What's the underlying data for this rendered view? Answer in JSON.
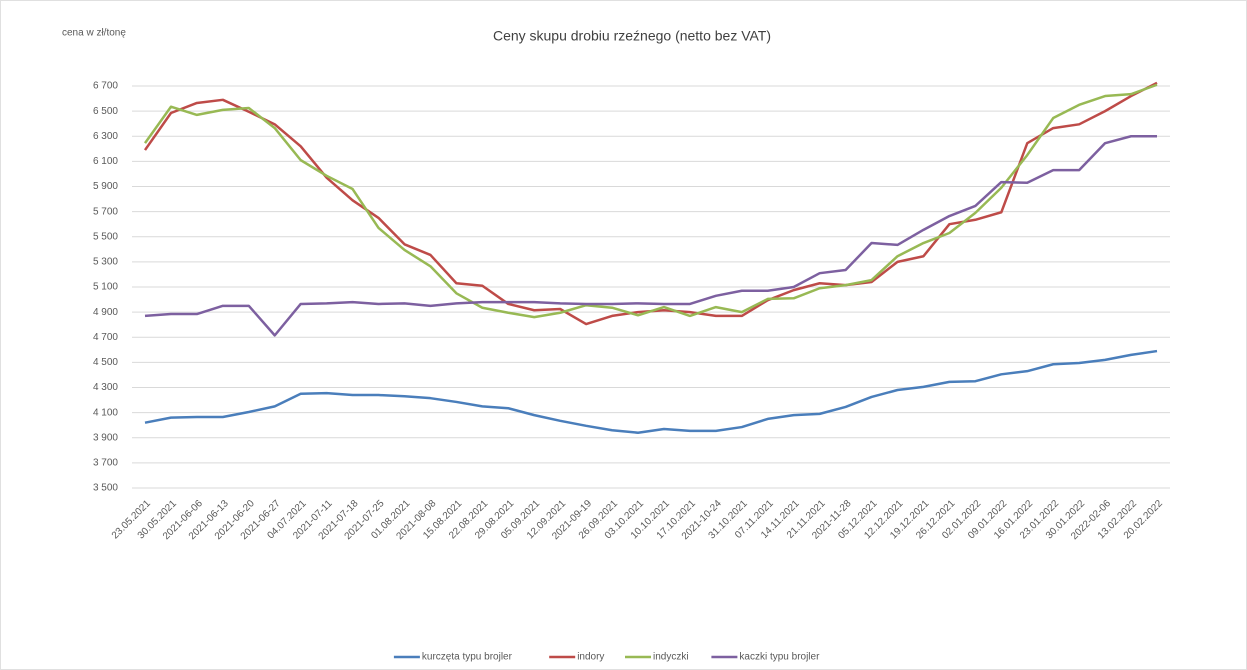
{
  "chart_data": {
    "type": "line",
    "title": "Ceny skupu drobiu rzeźnego (netto bez VAT)",
    "y_label": "cena w zł/tonę",
    "categories": [
      "23.05.2021",
      "30.05.2021",
      "2021-06-06",
      "2021-06-13",
      "2021-06-20",
      "2021-06-27",
      "04.07.2021",
      "2021-07-11",
      "2021-07-18",
      "2021-07-25",
      "01.08.2021",
      "2021-08-08",
      "15.08.2021",
      "22.08.2021",
      "29.08.2021",
      "05.09.2021",
      "12.09.2021",
      "2021-09-19",
      "26.09.2021",
      "03.10.2021",
      "10.10.2021",
      "17.10.2021",
      "2021-10-24",
      "31.10.2021",
      "07.11.2021",
      "14.11.2021",
      "21.11.2021",
      "2021-11-28",
      "05.12.2021",
      "12.12.2021",
      "19.12.2021",
      "26.12.2021",
      "02.01.2022",
      "09.01.2022",
      "16.01.2022",
      "23.01.2022",
      "30.01.2022",
      "2022-02-06",
      "13.02.2022",
      "20.02.2022"
    ],
    "series": [
      {
        "name": "kurczęta typu brojler",
        "color": "#4a7ebb",
        "values": [
          4020,
          4060,
          4065,
          4065,
          4105,
          4150,
          4250,
          4255,
          4240,
          4240,
          4230,
          4215,
          4185,
          4150,
          4135,
          4080,
          4035,
          3995,
          3960,
          3940,
          3970,
          3955,
          3955,
          3985,
          4050,
          4080,
          4090,
          4145,
          4225,
          4280,
          4305,
          4345,
          4350,
          4405,
          4430,
          4485,
          4495,
          4520,
          4560,
          4590
        ]
      },
      {
        "name": "indory",
        "color": "#be4b48",
        "values": [
          6190,
          6485,
          6565,
          6590,
          6495,
          6395,
          6220,
          5970,
          5790,
          5650,
          5440,
          5355,
          5130,
          5110,
          4965,
          4915,
          4925,
          4805,
          4870,
          4900,
          4915,
          4900,
          4870,
          4870,
          4995,
          5075,
          5130,
          5115,
          5140,
          5300,
          5345,
          5600,
          5635,
          5695,
          6245,
          6365,
          6395,
          6500,
          6620,
          6725
        ]
      },
      {
        "name": "indyczki",
        "color": "#98b954",
        "values": [
          6245,
          6535,
          6470,
          6510,
          6525,
          6365,
          6110,
          5985,
          5880,
          5570,
          5395,
          5265,
          5050,
          4935,
          4895,
          4860,
          4895,
          4955,
          4935,
          4875,
          4940,
          4870,
          4940,
          4900,
          5005,
          5010,
          5090,
          5115,
          5155,
          5345,
          5450,
          5530,
          5690,
          5890,
          6150,
          6445,
          6550,
          6620,
          6635,
          6710
        ]
      },
      {
        "name": "kaczki typu brojler",
        "color": "#7d60a0",
        "values": [
          4870,
          4885,
          4885,
          4950,
          4950,
          4715,
          4965,
          4970,
          4980,
          4965,
          4970,
          4950,
          4970,
          4980,
          4980,
          4980,
          4970,
          4965,
          4965,
          4970,
          4965,
          4965,
          5030,
          5070,
          5070,
          5100,
          5210,
          5235,
          5450,
          5435,
          5555,
          5665,
          5745,
          5935,
          5930,
          6030,
          6030,
          6245,
          6300,
          6300
        ]
      }
    ],
    "ylim": [
      3500,
      6700
    ],
    "yticks": [
      {
        "value": 3500,
        "label": "3 500"
      },
      {
        "value": 3700,
        "label": "3 700"
      },
      {
        "value": 3900,
        "label": "3 900"
      },
      {
        "value": 4100,
        "label": "4 100"
      },
      {
        "value": 4300,
        "label": "4 300"
      },
      {
        "value": 4500,
        "label": "4 500"
      },
      {
        "value": 4700,
        "label": "4 700"
      },
      {
        "value": 4900,
        "label": "4 900"
      },
      {
        "value": 5100,
        "label": "5 100"
      },
      {
        "value": 5300,
        "label": "5 300"
      },
      {
        "value": 5500,
        "label": "5 500"
      },
      {
        "value": 5700,
        "label": "5 700"
      },
      {
        "value": 5900,
        "label": "5 900"
      },
      {
        "value": 6100,
        "label": "6 100"
      },
      {
        "value": 6300,
        "label": "6 300"
      },
      {
        "value": 6500,
        "label": "6 500"
      },
      {
        "value": 6700,
        "label": "6 700"
      }
    ],
    "grid": true,
    "legend": "bottom"
  }
}
